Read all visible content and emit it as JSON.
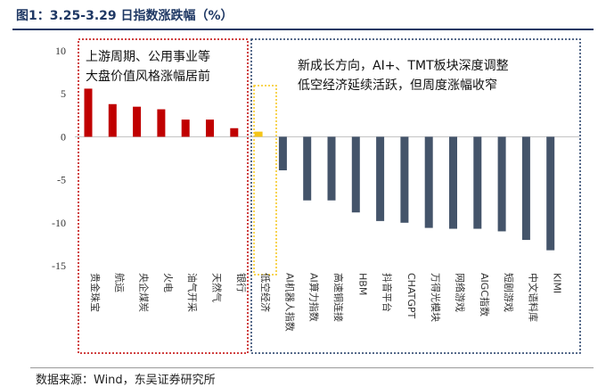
{
  "header": {
    "title": "图1：3.25-3.29 日指数涨跌幅（%）"
  },
  "footer": {
    "source": "数据来源：Wind，东吴证券研究所"
  },
  "annotations": {
    "left": [
      "上游周期、公用事业等",
      "大盘价值风格涨幅居前"
    ],
    "right": [
      "新成长方向，AI+、TMT板块深度调整",
      "低空经济延续活跃，但周度涨幅收窄"
    ]
  },
  "colors": {
    "up": "#c00000",
    "highlight": "#f5c518",
    "down": "#44546a",
    "box_left": "#c00000",
    "box_mid": "#f5c518",
    "box_right": "#1f3864"
  },
  "chart_data": {
    "type": "bar",
    "title": "3.25-3.29 日指数涨跌幅（%）",
    "xlabel": "",
    "ylabel": "",
    "ylim": [
      -15,
      10
    ],
    "yticks": [
      10,
      5,
      0,
      -5,
      -10,
      -15
    ],
    "grid": false,
    "categories": [
      "贵金珠宝",
      "航运",
      "央企煤炭",
      "火电",
      "油气开采",
      "天然气",
      "银行",
      "低空经济",
      "AI机器人指数",
      "AI算力指数",
      "高速铜连接",
      "HBM",
      "抖音平台",
      "CHATGPT",
      "万得光模块",
      "网络游戏",
      "AIGC指数",
      "短剧游戏",
      "中文语料库",
      "KIMI"
    ],
    "values": [
      5.6,
      3.8,
      3.5,
      3.2,
      2.0,
      2.0,
      1.0,
      0.6,
      -3.9,
      -7.4,
      -7.4,
      -8.8,
      -9.8,
      -10.0,
      -10.6,
      -10.7,
      -10.7,
      -11.0,
      -12.0,
      -13.2
    ],
    "groups": [
      "up",
      "up",
      "up",
      "up",
      "up",
      "up",
      "up",
      "highlight",
      "down",
      "down",
      "down",
      "down",
      "down",
      "down",
      "down",
      "down",
      "down",
      "down",
      "down",
      "down"
    ]
  }
}
